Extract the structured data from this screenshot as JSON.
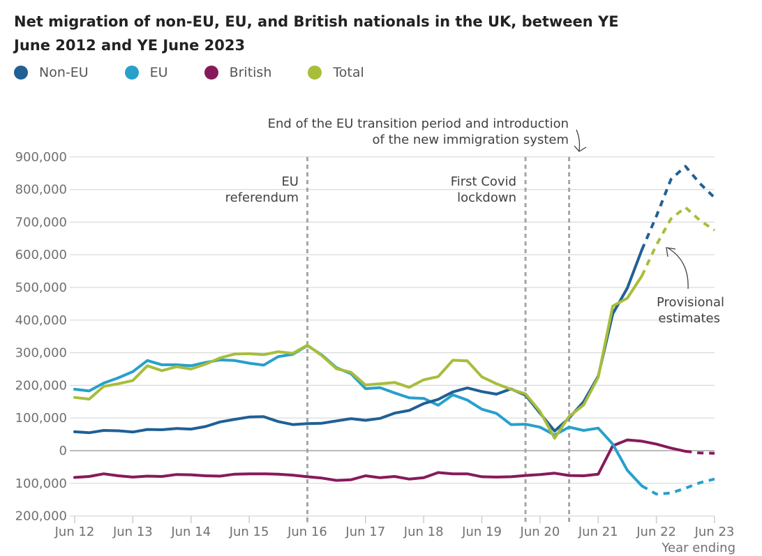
{
  "chart_data": {
    "type": "line",
    "title": "Net migration of non-EU, EU, and British nationals in the UK, between YE June 2012 and YE June 2023",
    "xlabel": "Year ending",
    "ylabel": "",
    "ylim": [
      -200000,
      900000
    ],
    "y_ticks": [
      900000,
      800000,
      700000,
      600000,
      500000,
      400000,
      300000,
      200000,
      100000,
      0,
      -100000,
      -200000
    ],
    "y_tick_labels": [
      "900,000",
      "800,000",
      "700,000",
      "600,000",
      "500,000",
      "400,000",
      "300,000",
      "200,000",
      "100,000",
      "0",
      "100,000",
      "200,000"
    ],
    "x_tick_labels": [
      "Jun 12",
      "Jun 13",
      "Jun 14",
      "Jun 15",
      "Jun 16",
      "Jun 17",
      "Jun 18",
      "Jun 19",
      "Jun 20",
      "Jun 21",
      "Jun 22",
      "Jun 23"
    ],
    "x": [
      "Jun 12",
      "Sep 12",
      "Dec 12",
      "Mar 13",
      "Jun 13",
      "Sep 13",
      "Dec 13",
      "Mar 14",
      "Jun 14",
      "Sep 14",
      "Dec 14",
      "Mar 15",
      "Jun 15",
      "Sep 15",
      "Dec 15",
      "Mar 16",
      "Jun 16",
      "Sep 16",
      "Dec 16",
      "Mar 17",
      "Jun 17",
      "Sep 17",
      "Dec 17",
      "Mar 18",
      "Jun 18",
      "Sep 18",
      "Dec 18",
      "Mar 19",
      "Jun 19",
      "Sep 19",
      "Dec 19",
      "Mar 20",
      "Jun 20",
      "Sep 20",
      "Dec 20",
      "Mar 21",
      "Jun 21",
      "Sep 21",
      "Dec 21",
      "Mar 22",
      "Jun 22",
      "Sep 22",
      "Dec 22",
      "Mar 23",
      "Jun 23"
    ],
    "grid": true,
    "legend_position": "top-left",
    "series": [
      {
        "name": "Non-EU",
        "color": "#206095",
        "provisional_from": "Mar 22",
        "values": [
          58000,
          55000,
          62000,
          61000,
          57000,
          65000,
          64000,
          68000,
          66000,
          74000,
          88000,
          96000,
          103000,
          104000,
          89000,
          80000,
          83000,
          84000,
          91000,
          98000,
          93000,
          99000,
          115000,
          123000,
          144000,
          157000,
          180000,
          192000,
          181000,
          173000,
          189000,
          170000,
          115000,
          60000,
          100000,
          150000,
          228000,
          419000,
          498000,
          615000,
          718000,
          831000,
          871000,
          818000,
          775000
        ]
      },
      {
        "name": "EU",
        "color": "#27a0cc",
        "provisional_from": "Mar 22",
        "values": [
          188000,
          183000,
          207000,
          223000,
          242000,
          276000,
          263000,
          263000,
          260000,
          270000,
          278000,
          276000,
          268000,
          262000,
          288000,
          295000,
          322000,
          293000,
          254000,
          236000,
          190000,
          193000,
          177000,
          162000,
          160000,
          139000,
          171000,
          155000,
          127000,
          114000,
          80000,
          81000,
          72000,
          48000,
          72000,
          62000,
          69000,
          20000,
          -60000,
          -108000,
          -133000,
          -130000,
          -115000,
          -98000,
          -87000
        ]
      },
      {
        "name": "British",
        "color": "#871a5b",
        "provisional_from": "Dec 22",
        "values": [
          -82000,
          -79000,
          -71000,
          -77000,
          -81000,
          -78000,
          -79000,
          -73000,
          -74000,
          -77000,
          -78000,
          -72000,
          -71000,
          -71000,
          -72000,
          -75000,
          -80000,
          -84000,
          -91000,
          -89000,
          -77000,
          -83000,
          -79000,
          -87000,
          -83000,
          -67000,
          -71000,
          -71000,
          -80000,
          -81000,
          -80000,
          -76000,
          -73000,
          -69000,
          -76000,
          -77000,
          -72000,
          15000,
          33000,
          29000,
          20000,
          8000,
          -2000,
          -7000,
          -8000
        ]
      },
      {
        "name": "Total",
        "color": "#a8bd3a",
        "provisional_from": "Mar 22",
        "values": [
          163000,
          158000,
          197000,
          205000,
          215000,
          260000,
          245000,
          257000,
          250000,
          265000,
          284000,
          296000,
          297000,
          294000,
          303000,
          298000,
          323000,
          291000,
          251000,
          240000,
          201000,
          205000,
          209000,
          194000,
          217000,
          227000,
          277000,
          275000,
          226000,
          205000,
          188000,
          174000,
          120000,
          38000,
          105000,
          140000,
          225000,
          443000,
          467000,
          535000,
          630000,
          710000,
          745000,
          705000,
          675000
        ]
      }
    ],
    "annotations": {
      "eu_referendum": [
        "EU",
        "referendum"
      ],
      "covid": [
        "First Covid",
        "lockdown"
      ],
      "transition": [
        "End of the EU transition period and introduction",
        "of the new immigration system"
      ],
      "provisional": [
        "Provisional",
        "estimates"
      ]
    },
    "reference_lines": [
      "Jun 16",
      "Mar 20",
      "Dec 20"
    ]
  }
}
